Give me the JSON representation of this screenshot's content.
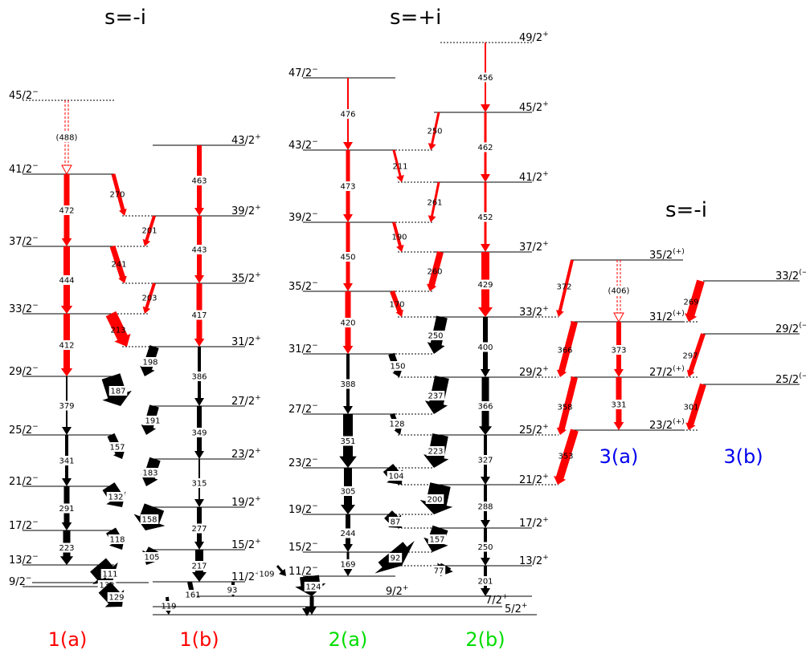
{
  "colors": {
    "red": "#ff0000",
    "black": "#000000",
    "green": "#00dd00",
    "blue": "#0000ee"
  },
  "headers": {
    "left": "s=-i",
    "middle": "s=+i",
    "right": "s=-i"
  },
  "band_labels": [
    {
      "text": "1(a)",
      "color": "#ff0000"
    },
    {
      "text": "1(b)",
      "color": "#ff0000"
    },
    {
      "text": "2(a)",
      "color": "#00dd00"
    },
    {
      "text": "2(b)",
      "color": "#00dd00"
    },
    {
      "text": "3(a)",
      "color": "#0000ee"
    },
    {
      "text": "3(b)",
      "color": "#0000ee"
    }
  ],
  "level_labels": {
    "b1a": [
      "45/2",
      "41/2",
      "37/2",
      "33/2",
      "29/2",
      "25/2",
      "21/2",
      "17/2",
      "13/2",
      "9/2"
    ],
    "b1b": [
      "43/2",
      "39/2",
      "35/2",
      "31/2",
      "27/2",
      "23/2",
      "19/2",
      "15/2",
      "11/2"
    ],
    "b2a": [
      "47/2",
      "43/2",
      "39/2",
      "35/2",
      "31/2",
      "27/2",
      "23/2",
      "19/2",
      "15/2",
      "11/2"
    ],
    "b2b": [
      "49/2",
      "45/2",
      "41/2",
      "37/2",
      "33/2",
      "29/2",
      "25/2",
      "21/2",
      "17/2",
      "13/2",
      "9/2"
    ],
    "b3a": [
      "35/2",
      "31/2",
      "27/2",
      "23/2"
    ],
    "b3b": [
      "33/2",
      "29/2",
      "25/2"
    ],
    "ground": [
      "7/2",
      "5/2"
    ]
  },
  "parity": {
    "minus": "−",
    "plus": "+",
    "tentative_plus": "(+)",
    "tentative_minus": "(−)"
  },
  "energies": {
    "b1a_e2": [
      "(488)",
      "472",
      "444",
      "412",
      "379",
      "341",
      "291",
      "223"
    ],
    "b1b_e2": [
      "463",
      "443",
      "417",
      "386",
      "349",
      "315",
      "277",
      "217"
    ],
    "b1_m1": [
      "270",
      "201",
      "241",
      "203",
      "213",
      "198",
      "187",
      "191",
      "157",
      "183",
      "132",
      "158",
      "118",
      "105",
      "111",
      "132",
      "129",
      "161",
      "93",
      "119"
    ],
    "b2a_e2": [
      "476",
      "473",
      "450",
      "420",
      "388",
      "351",
      "305",
      "244",
      "169"
    ],
    "b2b_e2": [
      "456",
      "462",
      "452",
      "429",
      "400",
      "366",
      "327",
      "288",
      "250",
      "201"
    ],
    "b2_m1": [
      "250",
      "211",
      "261",
      "190",
      "260",
      "170",
      "250",
      "150",
      "237",
      "128",
      "223",
      "104",
      "200",
      "87",
      "157",
      "92",
      "77",
      "124",
      "109"
    ],
    "b3_e2": [
      "(406)",
      "373",
      "331"
    ],
    "b3_links": [
      "372",
      "366",
      "358",
      "353",
      "269",
      "297",
      "301"
    ]
  }
}
